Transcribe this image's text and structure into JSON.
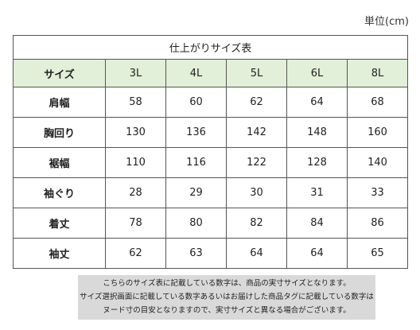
{
  "unit_label": "単位(cm)",
  "table": {
    "title": "仕上がりサイズ表",
    "header_label": "サイズ",
    "sizes": [
      "3L",
      "4L",
      "5L",
      "6L",
      "8L"
    ],
    "rows": [
      {
        "label": "肩幅",
        "values": [
          "58",
          "60",
          "62",
          "64",
          "68"
        ]
      },
      {
        "label": "胸回り",
        "values": [
          "130",
          "136",
          "142",
          "148",
          "160"
        ]
      },
      {
        "label": "裾幅",
        "values": [
          "110",
          "116",
          "122",
          "128",
          "140"
        ]
      },
      {
        "label": "袖ぐり",
        "values": [
          "28",
          "29",
          "30",
          "31",
          "33"
        ]
      },
      {
        "label": "着丈",
        "values": [
          "78",
          "80",
          "82",
          "84",
          "86"
        ]
      },
      {
        "label": "袖丈",
        "values": [
          "62",
          "63",
          "64",
          "64",
          "65"
        ]
      }
    ]
  },
  "note_lines": [
    "こちらのサイズ表に記載している数字は、商品の実寸サイズとなります。",
    "サイズ選択画面に記載している数字あるいはお届けした商品タグに記載している数字は",
    "ヌード寸の目安となりますので、実寸サイズと異なる場合がございます。"
  ],
  "colors": {
    "header_bg": "#e2efd9",
    "note_bg": "#d9d9d9",
    "border": "#555555"
  }
}
